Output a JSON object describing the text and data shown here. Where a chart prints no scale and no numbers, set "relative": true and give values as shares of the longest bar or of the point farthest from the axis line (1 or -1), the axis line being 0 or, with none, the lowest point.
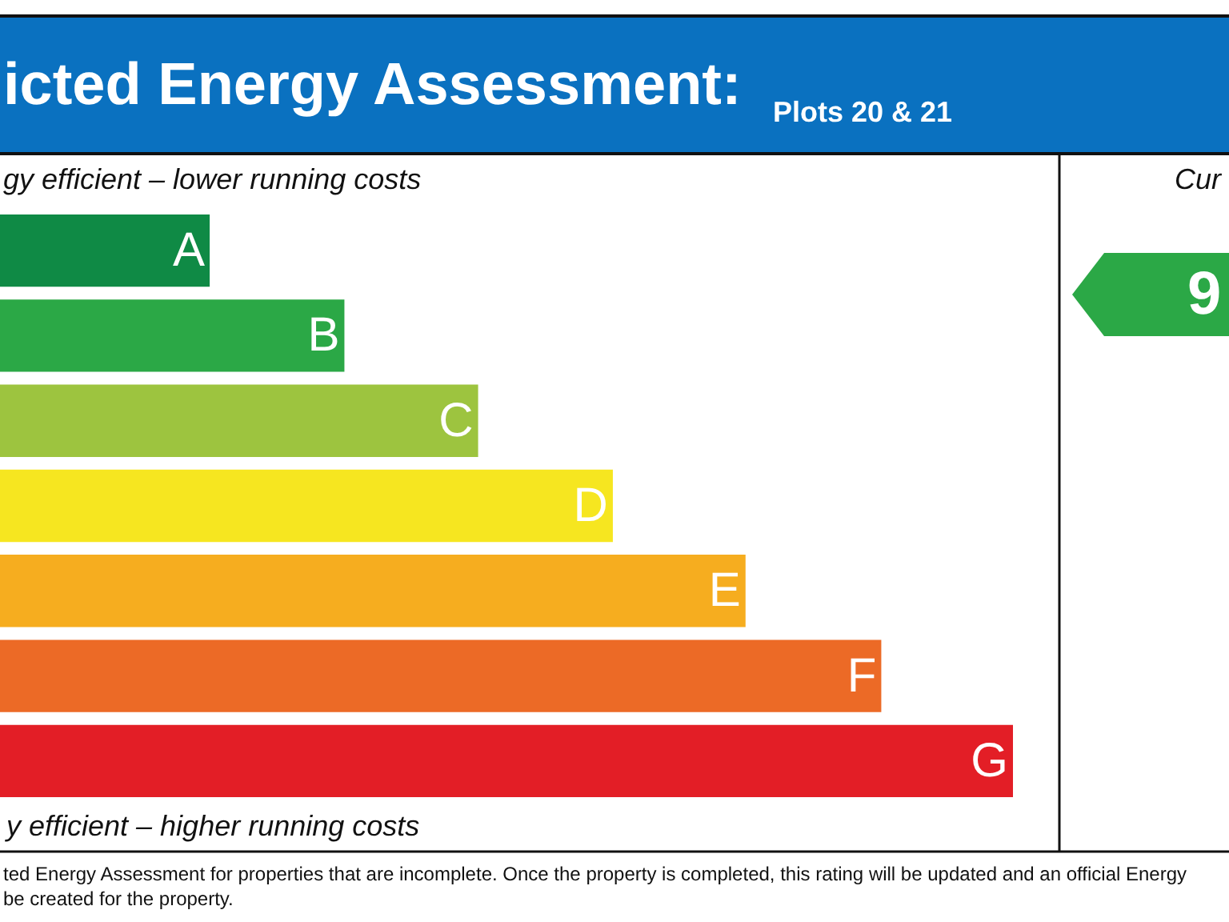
{
  "chart_data": {
    "type": "bar",
    "orientation": "horizontal",
    "relative": true,
    "legend": false,
    "title": "icted Energy Assessment:",
    "subtitle": "Plots 20 & 21",
    "categories": [
      "A",
      "B",
      "C",
      "D",
      "E",
      "F",
      "G"
    ],
    "values": [
      0.207,
      0.34,
      0.472,
      0.605,
      0.736,
      0.87,
      1.0
    ],
    "colors": [
      "#0f8a45",
      "#2ba846",
      "#9dc43f",
      "#f6e620",
      "#f6ad1f",
      "#ec6a26",
      "#e31e26"
    ],
    "annotations": [
      "gy efficient – lower running costs",
      "y efficient – higher running costs",
      "Cur",
      "9",
      "ted Energy Assessment for properties that are incomplete. Once the property is completed, this rating will be updated and an official Energy\nbe created for the property."
    ]
  }
}
